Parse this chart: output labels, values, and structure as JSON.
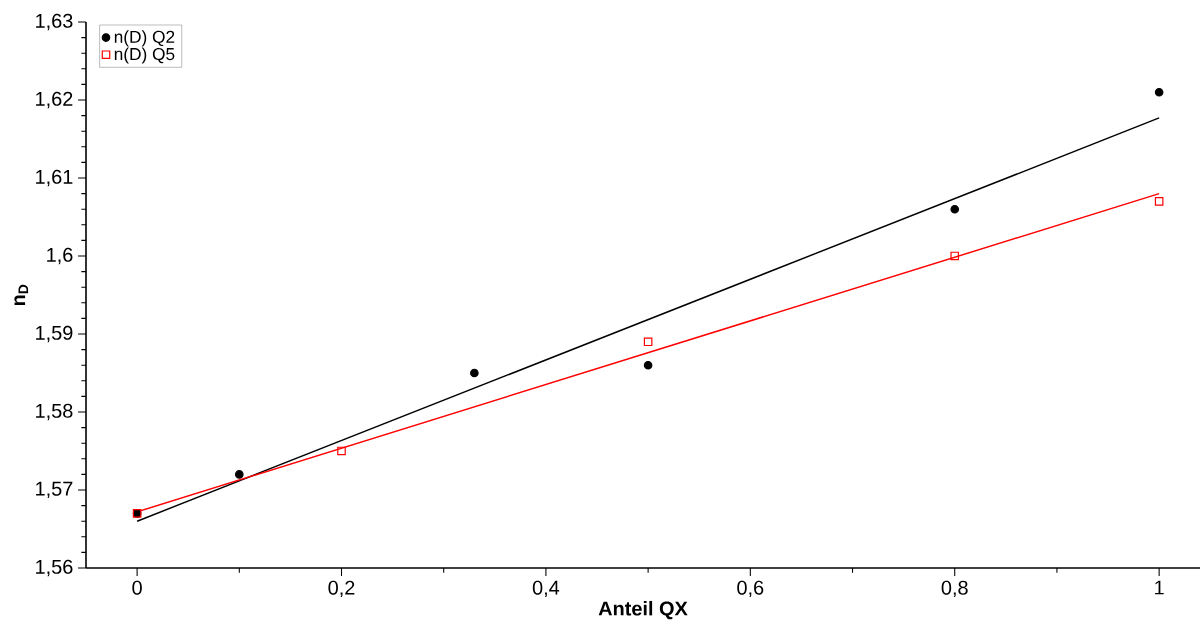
{
  "chart_data": {
    "type": "scatter",
    "xlabel": "Anteil QX",
    "ylabel": "n$_{D}$",
    "xlim": [
      -0.05,
      1.04
    ],
    "ylim": [
      1.56,
      1.63
    ],
    "xticks": [
      {
        "value": 0,
        "label": "0"
      },
      {
        "value": 0.2,
        "label": "0,2"
      },
      {
        "value": 0.4,
        "label": "0,4"
      },
      {
        "value": 0.6,
        "label": "0,6"
      },
      {
        "value": 0.8,
        "label": "0,8"
      },
      {
        "value": 1,
        "label": "1"
      }
    ],
    "yticks": [
      {
        "value": 1.56,
        "label": "1,56"
      },
      {
        "value": 1.57,
        "label": "1,57"
      },
      {
        "value": 1.58,
        "label": "1,58"
      },
      {
        "value": 1.59,
        "label": "1,59"
      },
      {
        "value": 1.6,
        "label": "1,6"
      },
      {
        "value": 1.61,
        "label": "1,61"
      },
      {
        "value": 1.62,
        "label": "1,62"
      },
      {
        "value": 1.63,
        "label": "1,63"
      }
    ],
    "legend": "top left",
    "grid": false,
    "series": [
      {
        "name": "n(D) Q2",
        "marker": "circle",
        "color": "#000000",
        "x": [
          0,
          0.1,
          0.33,
          0.5,
          0.8,
          1
        ],
        "values": [
          1.567,
          1.572,
          1.585,
          1.586,
          1.606,
          1.621
        ]
      },
      {
        "name": "n(D) Q5",
        "marker": "square",
        "color": "#ff0000",
        "x": [
          0,
          0.2,
          0.5,
          0.8,
          1
        ],
        "values": [
          1.567,
          1.575,
          1.589,
          1.6,
          1.607
        ]
      },
      {
        "type": "line",
        "marker": "none",
        "color": "#000000",
        "x": [
          0,
          1
        ],
        "values": [
          1.566,
          1.6177
        ]
      },
      {
        "type": "line",
        "marker": "none",
        "color": "#ff0000",
        "x": [
          0,
          1
        ],
        "values": [
          1.5672,
          1.608
        ]
      }
    ]
  }
}
